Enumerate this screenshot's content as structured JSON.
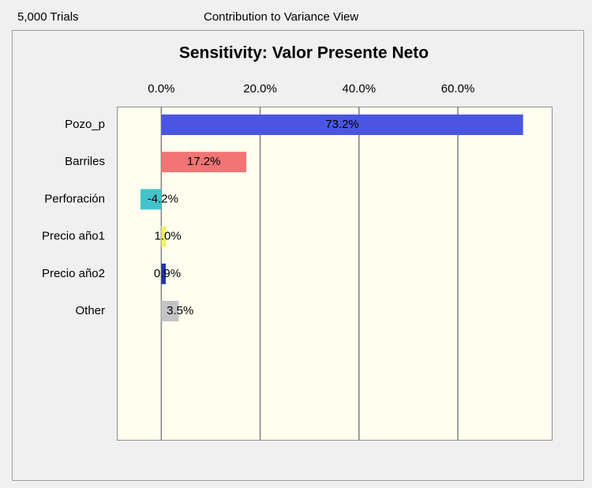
{
  "header": {
    "trials": "5,000 Trials",
    "view": "Contribution to Variance View"
  },
  "chart_data": {
    "type": "bar",
    "orientation": "horizontal",
    "title": "Sensitivity: Valor Presente Neto",
    "categories": [
      "Pozo_p",
      "Barriles",
      "Perforación",
      "Precio año1",
      "Precio año2",
      "Other"
    ],
    "values": [
      73.2,
      17.2,
      -4.2,
      1.0,
      0.9,
      3.5
    ],
    "value_labels": [
      "73.2%",
      "17.2%",
      "-4.2%",
      "1.0%",
      "0.9%",
      "3.5%"
    ],
    "colors": [
      "#4a56e2",
      "#f27474",
      "#44c3cc",
      "#f2f26a",
      "#2233a8",
      "#c4c4c4"
    ],
    "xlim": [
      -9,
      79
    ],
    "xticks": [
      {
        "value": 0,
        "label": "0.0%"
      },
      {
        "value": 20,
        "label": "20.0%"
      },
      {
        "value": 40,
        "label": "40.0%"
      },
      {
        "value": 60,
        "label": "60.0%"
      }
    ],
    "grid": true
  }
}
